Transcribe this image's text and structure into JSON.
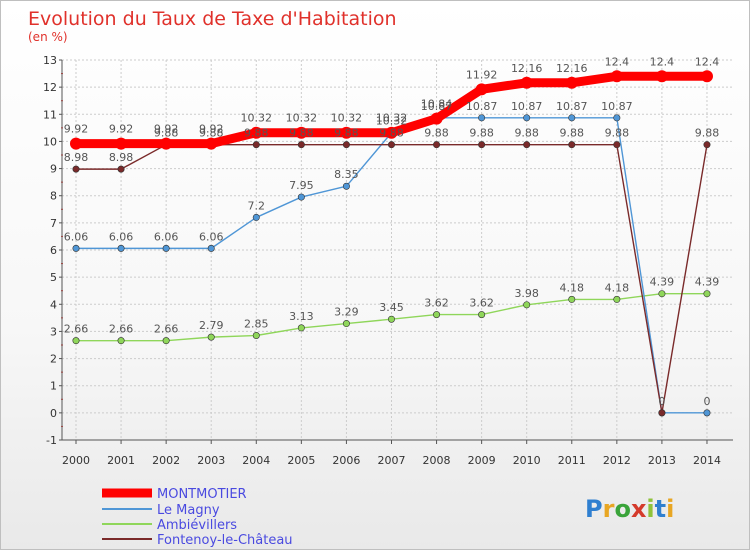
{
  "chart_data": {
    "type": "line",
    "title": "Evolution du Taux de Taxe d'Habitation",
    "subtitle": "(en %)",
    "ylim": [
      -1,
      13
    ],
    "yticks": [
      -1,
      0,
      1,
      2,
      3,
      4,
      5,
      6,
      7,
      8,
      9,
      10,
      11,
      12,
      13
    ],
    "grid": true,
    "legend_position": "bottom-left",
    "categories": [
      "2000",
      "2001",
      "2002",
      "2003",
      "2004",
      "2005",
      "2006",
      "2007",
      "2008",
      "2009",
      "2010",
      "2011",
      "2012",
      "2013",
      "2014"
    ],
    "series": [
      {
        "name": "MONTMOTIER",
        "color": "#ff0000",
        "values": [
          9.92,
          9.92,
          9.92,
          9.92,
          10.32,
          10.32,
          10.32,
          10.32,
          10.84,
          11.92,
          12.16,
          12.16,
          12.4,
          12.4,
          12.4
        ],
        "labels": [
          "9.92",
          "9.92",
          "9.92",
          "9.92",
          "10.32",
          "10.32",
          "10.32",
          "10.32",
          "10.84",
          "11.92",
          "12.16",
          "12.16",
          "12.4",
          "12.4",
          "12.4"
        ]
      },
      {
        "name": "Le Magny",
        "color": "#4f96d6",
        "values": [
          6.06,
          6.06,
          6.06,
          6.06,
          7.2,
          7.95,
          8.35,
          10.32,
          10.87,
          10.87,
          10.87,
          10.87,
          10.87,
          0,
          0
        ],
        "labels": [
          "6.06",
          "6.06",
          "6.06",
          "6.06",
          "7.2",
          "7.95",
          "8.35",
          "10.32",
          "10.87",
          "10.87",
          "10.87",
          "10.87",
          "10.87",
          "",
          "0"
        ]
      },
      {
        "name": "Ambiévillers",
        "color": "#8fd65a",
        "values": [
          2.66,
          2.66,
          2.66,
          2.79,
          2.85,
          3.13,
          3.29,
          3.45,
          3.62,
          3.62,
          3.98,
          4.18,
          4.18,
          4.39,
          4.39
        ],
        "labels": [
          "2.66",
          "2.66",
          "2.66",
          "2.79",
          "2.85",
          "3.13",
          "3.29",
          "3.45",
          "3.62",
          "3.62",
          "3.98",
          "4.18",
          "4.18",
          "4.39",
          "4.39"
        ]
      },
      {
        "name": "Fontenoy-le-Château",
        "color": "#7a2a2a",
        "values": [
          8.98,
          8.98,
          9.88,
          9.88,
          9.88,
          9.88,
          9.88,
          9.88,
          9.88,
          9.88,
          9.88,
          9.88,
          9.88,
          0,
          9.88
        ],
        "labels": [
          "8.98",
          "8.98",
          "9.88",
          "9.88",
          "9.88",
          "9.88",
          "9.88",
          "9.88",
          "9.88",
          "9.88",
          "9.88",
          "9.88",
          "9.88",
          "0",
          "9.88"
        ]
      }
    ]
  },
  "logo": {
    "text": "Proxiti"
  }
}
